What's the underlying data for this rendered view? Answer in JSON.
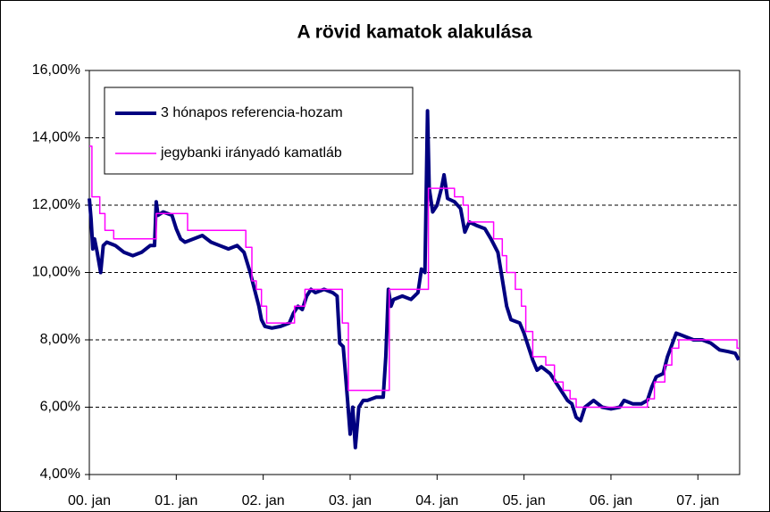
{
  "chart_data": {
    "type": "line",
    "title": "A rövid kamatok alakulása",
    "xlim": [
      0,
      7.48
    ],
    "xticks": [
      {
        "value": 0,
        "label": "00. jan"
      },
      {
        "value": 1,
        "label": "01. jan"
      },
      {
        "value": 2,
        "label": "02. jan"
      },
      {
        "value": 3,
        "label": "03. jan"
      },
      {
        "value": 4,
        "label": "04. jan"
      },
      {
        "value": 5,
        "label": "05. jan"
      },
      {
        "value": 6,
        "label": "06. jan"
      },
      {
        "value": 7,
        "label": "07. jan"
      }
    ],
    "ylim": [
      4,
      16
    ],
    "yticks": [
      {
        "value": 4,
        "label": "4,00%"
      },
      {
        "value": 6,
        "label": "6,00%"
      },
      {
        "value": 8,
        "label": "8,00%"
      },
      {
        "value": 10,
        "label": "10,00%"
      },
      {
        "value": 12,
        "label": "12,00%"
      },
      {
        "value": 14,
        "label": "14,00%"
      },
      {
        "value": 16,
        "label": "16,00%"
      }
    ],
    "grid": true,
    "legend": "upper left",
    "series": [
      {
        "name": "3 hónapos referencia-hozam",
        "color": "#000080",
        "x": [
          0,
          0.02,
          0.04,
          0.06,
          0.09,
          0.13,
          0.16,
          0.2,
          0.3,
          0.4,
          0.5,
          0.6,
          0.7,
          0.75,
          0.77,
          0.79,
          0.85,
          0.95,
          1.0,
          1.05,
          1.1,
          1.2,
          1.3,
          1.4,
          1.5,
          1.6,
          1.7,
          1.78,
          1.85,
          1.9,
          1.95,
          1.98,
          2.02,
          2.1,
          2.2,
          2.3,
          2.35,
          2.4,
          2.45,
          2.5,
          2.55,
          2.6,
          2.7,
          2.8,
          2.85,
          2.88,
          2.92,
          2.94,
          2.97,
          3.0,
          3.03,
          3.06,
          3.1,
          3.15,
          3.2,
          3.3,
          3.38,
          3.41,
          3.44,
          3.47,
          3.5,
          3.6,
          3.7,
          3.78,
          3.82,
          3.86,
          3.89,
          3.91,
          3.95,
          4.0,
          4.05,
          4.08,
          4.12,
          4.2,
          4.27,
          4.32,
          4.37,
          4.45,
          4.55,
          4.62,
          4.7,
          4.75,
          4.8,
          4.85,
          4.95,
          5.0,
          5.05,
          5.1,
          5.15,
          5.2,
          5.3,
          5.4,
          5.5,
          5.55,
          5.6,
          5.65,
          5.7,
          5.8,
          5.9,
          6.0,
          6.1,
          6.15,
          6.25,
          6.35,
          6.42,
          6.47,
          6.52,
          6.6,
          6.65,
          6.75,
          6.85,
          6.95,
          7.05,
          7.15,
          7.25,
          7.35,
          7.43,
          7.47
        ],
        "values": [
          12.2,
          11.6,
          10.7,
          11.0,
          10.6,
          10.0,
          10.8,
          10.9,
          10.8,
          10.6,
          10.5,
          10.6,
          10.8,
          10.8,
          12.1,
          11.7,
          11.8,
          11.7,
          11.3,
          11.0,
          10.9,
          11.0,
          11.1,
          10.9,
          10.8,
          10.7,
          10.8,
          10.6,
          10.0,
          9.5,
          9.0,
          8.6,
          8.4,
          8.35,
          8.4,
          8.5,
          8.8,
          9.0,
          8.9,
          9.3,
          9.5,
          9.4,
          9.5,
          9.4,
          9.3,
          7.9,
          7.8,
          7.2,
          6.2,
          5.2,
          6.0,
          4.8,
          6.0,
          6.2,
          6.2,
          6.3,
          6.3,
          7.5,
          9.5,
          9.0,
          9.2,
          9.3,
          9.2,
          9.4,
          10.1,
          10.0,
          14.8,
          12.5,
          11.8,
          12.0,
          12.5,
          12.9,
          12.2,
          12.1,
          11.9,
          11.2,
          11.5,
          11.4,
          11.3,
          11.0,
          10.6,
          9.8,
          9.0,
          8.6,
          8.5,
          8.2,
          7.8,
          7.4,
          7.1,
          7.2,
          7.0,
          6.6,
          6.2,
          6.1,
          5.7,
          5.6,
          6.0,
          6.2,
          6.0,
          5.95,
          6.0,
          6.2,
          6.1,
          6.1,
          6.2,
          6.6,
          6.9,
          7.0,
          7.5,
          8.2,
          8.1,
          8.0,
          8.0,
          7.9,
          7.7,
          7.65,
          7.6,
          7.4
        ]
      },
      {
        "name": "jegybanki irányadó kamatláb",
        "color": "#ff00ff",
        "x": [
          0,
          0.03,
          0.03,
          0.12,
          0.12,
          0.18,
          0.18,
          0.28,
          0.28,
          0.77,
          0.77,
          1.13,
          1.13,
          1.8,
          1.8,
          1.87,
          1.87,
          1.92,
          1.92,
          1.98,
          1.98,
          2.04,
          2.04,
          2.36,
          2.36,
          2.48,
          2.48,
          2.91,
          2.91,
          2.98,
          2.98,
          3.45,
          3.45,
          3.9,
          3.9,
          4.2,
          4.2,
          4.3,
          4.3,
          4.36,
          4.36,
          4.65,
          4.65,
          4.75,
          4.75,
          4.8,
          4.8,
          4.9,
          4.9,
          4.97,
          4.97,
          5.02,
          5.02,
          5.1,
          5.1,
          5.25,
          5.25,
          5.35,
          5.35,
          5.45,
          5.45,
          5.53,
          5.53,
          5.6,
          5.6,
          6.42,
          6.42,
          6.5,
          6.5,
          6.62,
          6.62,
          6.7,
          6.7,
          6.78,
          6.78,
          7.45,
          7.45,
          7.48
        ],
        "values": [
          13.75,
          13.75,
          12.25,
          12.25,
          11.75,
          11.75,
          11.25,
          11.25,
          11.0,
          11.0,
          11.75,
          11.75,
          11.25,
          11.25,
          10.75,
          10.75,
          9.75,
          9.75,
          9.5,
          9.5,
          9.0,
          9.0,
          8.5,
          8.5,
          9.0,
          9.0,
          9.5,
          9.5,
          8.5,
          8.5,
          6.5,
          6.5,
          9.5,
          9.5,
          12.5,
          12.5,
          12.25,
          12.25,
          12.0,
          12.0,
          11.5,
          11.5,
          11.0,
          11.0,
          10.5,
          10.5,
          10.0,
          10.0,
          9.5,
          9.5,
          9.0,
          9.0,
          8.25,
          8.25,
          7.5,
          7.5,
          7.25,
          7.25,
          6.75,
          6.75,
          6.5,
          6.5,
          6.25,
          6.25,
          6.0,
          6.0,
          6.25,
          6.25,
          6.75,
          6.75,
          7.25,
          7.25,
          7.75,
          7.75,
          8.0,
          8.0,
          7.75,
          7.75
        ]
      }
    ]
  }
}
